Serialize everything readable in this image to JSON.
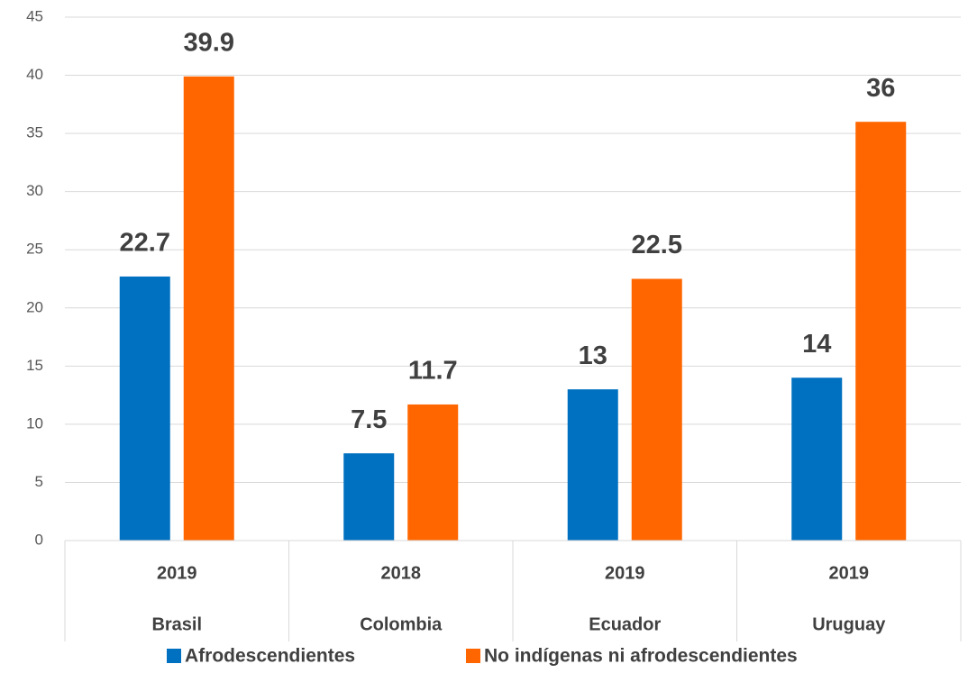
{
  "chart_data": {
    "type": "bar",
    "categories": [
      "Brasil",
      "Colombia",
      "Ecuador",
      "Uruguay"
    ],
    "years": [
      "2019",
      "2018",
      "2019",
      "2019"
    ],
    "series": [
      {
        "name": "Afrodescendientes",
        "color": "#0070c0",
        "values": [
          22.7,
          7.5,
          13,
          14
        ]
      },
      {
        "name": "No indígenas ni afrodescendientes",
        "color": "#ff6600",
        "values": [
          39.9,
          11.7,
          22.5,
          36
        ]
      }
    ],
    "ylim": [
      0,
      45
    ],
    "yticks": [
      0,
      5,
      10,
      15,
      20,
      25,
      30,
      35,
      40,
      45
    ],
    "grid": true,
    "legend": "bottom"
  }
}
